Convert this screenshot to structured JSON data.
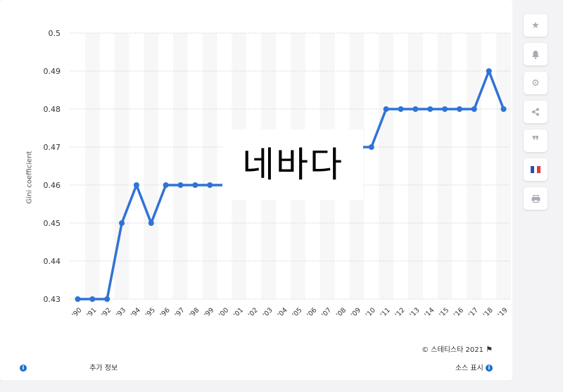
{
  "chart_data": {
    "type": "line",
    "ylabel": "Gini coefficient",
    "categories": [
      "'90",
      "'91",
      "'92",
      "'93",
      "'94",
      "'95",
      "'96",
      "'97",
      "'98",
      "'99",
      "'00",
      "'01",
      "'02",
      "'03",
      "'04",
      "'05",
      "'06",
      "'07",
      "'08",
      "'09",
      "'10",
      "'11",
      "'12",
      "'13",
      "'14",
      "'15",
      "'16",
      "'17",
      "'18",
      "'19"
    ],
    "values": [
      0.43,
      0.43,
      0.43,
      0.45,
      0.46,
      0.45,
      0.46,
      0.46,
      0.46,
      0.46,
      0.46,
      null,
      null,
      null,
      null,
      null,
      null,
      null,
      null,
      0.47,
      0.47,
      0.48,
      0.48,
      0.48,
      0.48,
      0.48,
      0.48,
      0.48,
      0.49,
      0.48
    ],
    "yticks": [
      "0.43",
      "0.44",
      "0.45",
      "0.46",
      "0.47",
      "0.48",
      "0.49",
      "0.5"
    ],
    "ylim": [
      0.43,
      0.5
    ],
    "grid": true,
    "line_color": "#2f73d6"
  },
  "overlay_text": "네바다",
  "footer": {
    "copyright": "©  스테티스타 2021",
    "more_info": "추가 정보",
    "show_source": "소스 표시"
  },
  "sidebar": {
    "icons": [
      "star-icon",
      "bell-icon",
      "gear-icon",
      "share-icon",
      "quote-icon",
      "french-flag-icon",
      "print-icon"
    ]
  }
}
